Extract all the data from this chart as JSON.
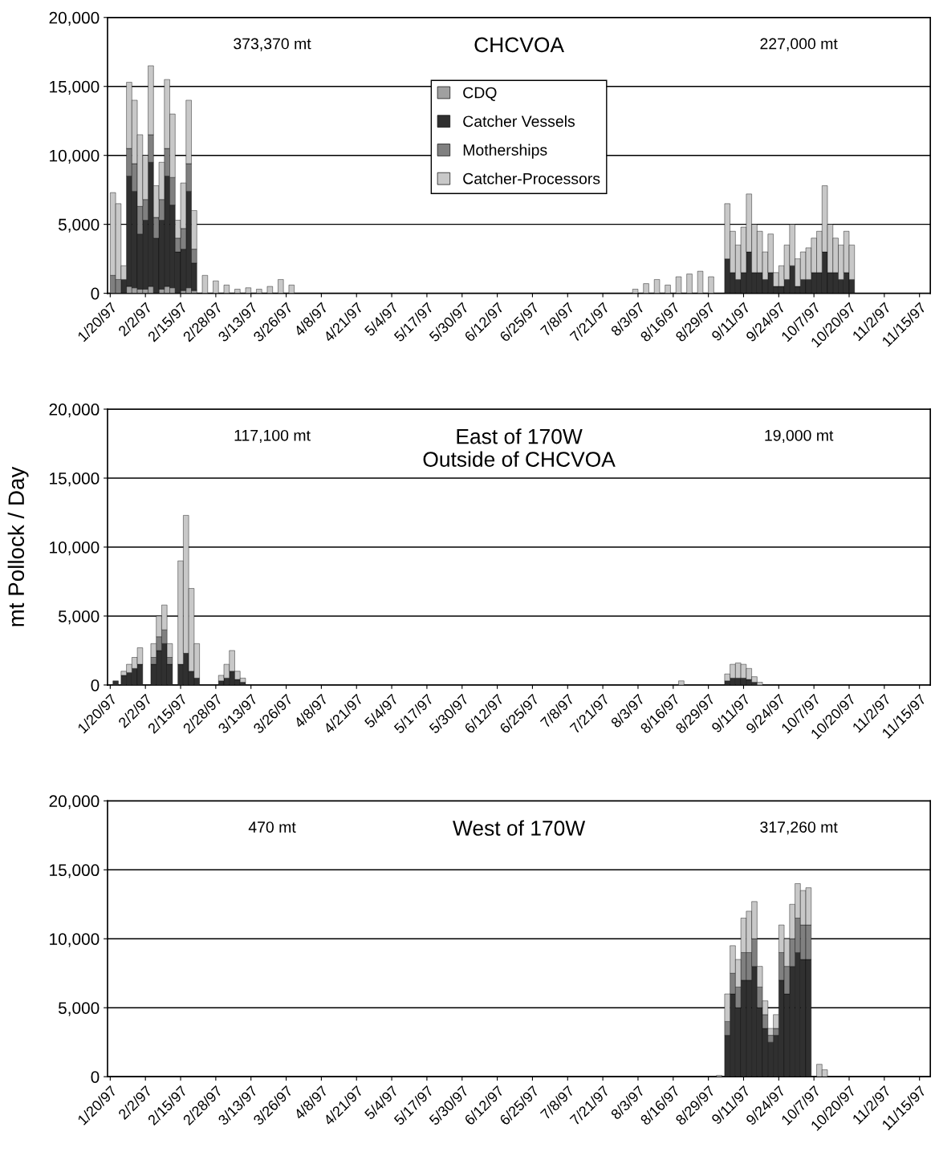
{
  "chart_data": [
    {
      "type": "bar",
      "stacked": true,
      "title": "CHCVOA",
      "annotations": [
        "373,370 mt",
        "227,000 mt"
      ],
      "legend": "top",
      "grid": "y",
      "x": [
        "1997-01-20",
        "1997-01-22",
        "1997-01-24",
        "1997-01-26",
        "1997-01-28",
        "1997-01-30",
        "1997-02-01",
        "1997-02-03",
        "1997-02-05",
        "1997-02-07",
        "1997-02-09",
        "1997-02-11",
        "1997-02-13",
        "1997-02-15",
        "1997-02-17",
        "1997-02-19",
        "1997-02-23",
        "1997-02-27",
        "1997-03-03",
        "1997-03-07",
        "1997-03-11",
        "1997-03-15",
        "1997-03-19",
        "1997-03-23",
        "1997-03-27",
        "1997-08-01",
        "1997-08-05",
        "1997-08-09",
        "1997-08-13",
        "1997-08-17",
        "1997-08-21",
        "1997-08-25",
        "1997-08-29",
        "1997-09-04",
        "1997-09-06",
        "1997-09-08",
        "1997-09-10",
        "1997-09-12",
        "1997-09-14",
        "1997-09-16",
        "1997-09-18",
        "1997-09-20",
        "1997-09-22",
        "1997-09-24",
        "1997-09-26",
        "1997-09-28",
        "1997-09-30",
        "1997-10-02",
        "1997-10-04",
        "1997-10-06",
        "1997-10-08",
        "1997-10-10",
        "1997-10-12",
        "1997-10-14",
        "1997-10-16",
        "1997-10-18",
        "1997-10-20"
      ],
      "series": [
        {
          "name": "CDQ",
          "color": "#a0a0a0",
          "values": [
            0,
            0,
            0,
            500,
            400,
            300,
            300,
            500,
            null,
            300,
            500,
            400,
            null,
            200,
            400,
            200,
            0,
            0,
            0,
            0,
            0,
            0,
            0,
            0,
            0,
            0,
            0,
            0,
            0,
            0,
            0,
            0,
            0,
            0,
            0,
            0,
            0,
            0,
            0,
            0,
            0,
            0,
            0,
            0,
            0,
            0,
            0,
            0,
            0,
            0,
            0,
            0,
            0,
            0,
            0,
            0,
            0
          ]
        },
        {
          "name": "Catcher Vessels",
          "color": "#303030",
          "values": [
            0,
            0,
            1000,
            8000,
            7000,
            4000,
            5000,
            9000,
            4000,
            5000,
            8000,
            6000,
            3000,
            3000,
            7000,
            2000,
            0,
            0,
            0,
            0,
            0,
            0,
            0,
            0,
            0,
            0,
            0,
            0,
            0,
            0,
            0,
            0,
            0,
            2500,
            1500,
            1000,
            1500,
            3000,
            1500,
            1500,
            1000,
            1500,
            500,
            500,
            1000,
            2000,
            500,
            1000,
            1000,
            1500,
            1500,
            3000,
            1500,
            1500,
            1000,
            1500,
            1000
          ]
        },
        {
          "name": "Motherships",
          "color": "#808080",
          "values": [
            1300,
            1000,
            0,
            2000,
            2000,
            2000,
            1500,
            2000,
            1500,
            1500,
            2000,
            2000,
            1000,
            1500,
            2000,
            1000,
            0,
            0,
            0,
            0,
            0,
            0,
            0,
            0,
            0,
            0,
            0,
            0,
            0,
            0,
            0,
            0,
            0,
            0,
            0,
            0,
            0,
            0,
            0,
            0,
            0,
            0,
            0,
            0,
            0,
            0,
            0,
            0,
            0,
            0,
            0,
            0,
            0,
            0,
            0,
            0,
            0
          ]
        },
        {
          "name": "Catcher-Processors",
          "color": "#c8c8c8",
          "values": [
            6000,
            5500,
            1000,
            4800,
            4600,
            5200,
            3200,
            5000,
            2300,
            2700,
            5000,
            4600,
            1300,
            3300,
            4600,
            2800,
            1300,
            900,
            600,
            300,
            400,
            300,
            500,
            1000,
            600,
            300,
            700,
            1000,
            600,
            1200,
            1400,
            1600,
            1200,
            4000,
            3000,
            2500,
            3300,
            4200,
            3500,
            3000,
            2000,
            2800,
            1000,
            1500,
            2500,
            3000,
            2000,
            2000,
            2300,
            2500,
            3000,
            4800,
            3500,
            2500,
            2500,
            3000,
            2500
          ]
        }
      ],
      "xlim": [
        "1997-01-19",
        "1997-11-19"
      ],
      "xticks": [
        {
          "value": "1997-01-20",
          "label": "1/20/97"
        },
        {
          "value": "1997-02-02",
          "label": "2/2/97"
        },
        {
          "value": "1997-02-15",
          "label": "2/15/97"
        },
        {
          "value": "1997-02-28",
          "label": "2/28/97"
        },
        {
          "value": "1997-03-13",
          "label": "3/13/97"
        },
        {
          "value": "1997-03-26",
          "label": "3/26/97"
        },
        {
          "value": "1997-04-08",
          "label": "4/8/97"
        },
        {
          "value": "1997-04-21",
          "label": "4/21/97"
        },
        {
          "value": "1997-05-04",
          "label": "5/4/97"
        },
        {
          "value": "1997-05-17",
          "label": "5/17/97"
        },
        {
          "value": "1997-05-30",
          "label": "5/30/97"
        },
        {
          "value": "1997-06-12",
          "label": "6/12/97"
        },
        {
          "value": "1997-06-25",
          "label": "6/25/97"
        },
        {
          "value": "1997-07-08",
          "label": "7/8/97"
        },
        {
          "value": "1997-07-21",
          "label": "7/21/97"
        },
        {
          "value": "1997-08-03",
          "label": "8/3/97"
        },
        {
          "value": "1997-08-16",
          "label": "8/16/97"
        },
        {
          "value": "1997-08-29",
          "label": "8/29/97"
        },
        {
          "value": "1997-09-11",
          "label": "9/11/97"
        },
        {
          "value": "1997-09-24",
          "label": "9/24/97"
        },
        {
          "value": "1997-10-07",
          "label": "10/7/97"
        },
        {
          "value": "1997-10-20",
          "label": "10/20/97"
        },
        {
          "value": "1997-11-02",
          "label": "11/2/97"
        },
        {
          "value": "1997-11-15",
          "label": "11/15/97"
        }
      ],
      "ylim": [
        0,
        20000
      ],
      "yticks": [
        {
          "value": 0,
          "label": "0"
        },
        {
          "value": 5000,
          "label": "5,000"
        },
        {
          "value": 10000,
          "label": "10,000"
        },
        {
          "value": 15000,
          "label": "15,000"
        },
        {
          "value": 20000,
          "label": "20,000"
        }
      ]
    },
    {
      "type": "bar",
      "stacked": true,
      "title": "East of 170W\nOutside of CHCVOA",
      "ylabel": "mt Pollock / Day",
      "annotations": [
        "117,100 mt",
        "19,000 mt"
      ],
      "grid": "y",
      "x": [
        "1997-01-21",
        "1997-01-24",
        "1997-01-26",
        "1997-01-28",
        "1997-01-30",
        "1997-02-04",
        "1997-02-06",
        "1997-02-08",
        "1997-02-10",
        "1997-02-14",
        "1997-02-16",
        "1997-02-18",
        "1997-02-20",
        "1997-03-01",
        "1997-03-03",
        "1997-03-05",
        "1997-03-07",
        "1997-03-09",
        "1997-08-18",
        "1997-09-04",
        "1997-09-06",
        "1997-09-08",
        "1997-09-10",
        "1997-09-12",
        "1997-09-14",
        "1997-09-16"
      ],
      "series": [
        {
          "color": "#303030",
          "values": [
            300,
            700,
            900,
            1200,
            1500,
            1500,
            2500,
            3000,
            1500,
            1500,
            2300,
            1000,
            500,
            300,
            500,
            1000,
            400,
            200,
            0,
            300,
            500,
            500,
            500,
            400,
            200,
            null
          ]
        },
        {
          "color": "#808080",
          "values": [
            0,
            0,
            0,
            0,
            0,
            500,
            1000,
            1000,
            500,
            0,
            0,
            0,
            0,
            0,
            0,
            0,
            0,
            0,
            0,
            0,
            0,
            0,
            0,
            0,
            0,
            0
          ]
        },
        {
          "color": "#c8c8c8",
          "values": [
            0,
            300,
            600,
            800,
            1200,
            1000,
            1500,
            1800,
            1000,
            7500,
            10000,
            6000,
            2500,
            400,
            1000,
            1500,
            600,
            300,
            300,
            500,
            1000,
            1100,
            1000,
            800,
            400,
            200
          ]
        }
      ],
      "xlim": [
        "1997-01-19",
        "1997-11-19"
      ],
      "xticks": [
        {
          "value": "1997-01-20",
          "label": "1/20/97"
        },
        {
          "value": "1997-02-02",
          "label": "2/2/97"
        },
        {
          "value": "1997-02-15",
          "label": "2/15/97"
        },
        {
          "value": "1997-02-28",
          "label": "2/28/97"
        },
        {
          "value": "1997-03-13",
          "label": "3/13/97"
        },
        {
          "value": "1997-03-26",
          "label": "3/26/97"
        },
        {
          "value": "1997-04-08",
          "label": "4/8/97"
        },
        {
          "value": "1997-04-21",
          "label": "4/21/97"
        },
        {
          "value": "1997-05-04",
          "label": "5/4/97"
        },
        {
          "value": "1997-05-17",
          "label": "5/17/97"
        },
        {
          "value": "1997-05-30",
          "label": "5/30/97"
        },
        {
          "value": "1997-06-12",
          "label": "6/12/97"
        },
        {
          "value": "1997-06-25",
          "label": "6/25/97"
        },
        {
          "value": "1997-07-08",
          "label": "7/8/97"
        },
        {
          "value": "1997-07-21",
          "label": "7/21/97"
        },
        {
          "value": "1997-08-03",
          "label": "8/3/97"
        },
        {
          "value": "1997-08-16",
          "label": "8/16/97"
        },
        {
          "value": "1997-08-29",
          "label": "8/29/97"
        },
        {
          "value": "1997-09-11",
          "label": "9/11/97"
        },
        {
          "value": "1997-09-24",
          "label": "9/24/97"
        },
        {
          "value": "1997-10-07",
          "label": "10/7/97"
        },
        {
          "value": "1997-10-20",
          "label": "10/20/97"
        },
        {
          "value": "1997-11-02",
          "label": "11/2/97"
        },
        {
          "value": "1997-11-15",
          "label": "11/15/97"
        }
      ],
      "ylim": [
        0,
        20000
      ],
      "yticks": [
        {
          "value": 0,
          "label": "0"
        },
        {
          "value": 5000,
          "label": "5,000"
        },
        {
          "value": 10000,
          "label": "10,000"
        },
        {
          "value": 15000,
          "label": "15,000"
        },
        {
          "value": 20000,
          "label": "20,000"
        }
      ]
    },
    {
      "type": "bar",
      "stacked": true,
      "title": "West of 170W",
      "annotations": [
        "470 mt",
        "317,260 mt"
      ],
      "grid": "y",
      "x": [
        "1997-09-01",
        "1997-09-04",
        "1997-09-06",
        "1997-09-08",
        "1997-09-10",
        "1997-09-12",
        "1997-09-14",
        "1997-09-16",
        "1997-09-18",
        "1997-09-20",
        "1997-09-22",
        "1997-09-24",
        "1997-09-26",
        "1997-09-28",
        "1997-09-30",
        "1997-10-02",
        "1997-10-04",
        "1997-10-08",
        "1997-10-10"
      ],
      "series": [
        {
          "color": "#303030",
          "values": [
            null,
            3000,
            6000,
            5000,
            7000,
            7000,
            8000,
            5000,
            3500,
            2500,
            3000,
            7000,
            6000,
            8000,
            9000,
            8500,
            8500,
            0,
            0
          ]
        },
        {
          "color": "#808080",
          "values": [
            0,
            1000,
            1500,
            1500,
            2000,
            2000,
            2000,
            1500,
            1000,
            500,
            500,
            2000,
            2000,
            2000,
            2500,
            2500,
            2500,
            0,
            0
          ]
        },
        {
          "color": "#c8c8c8",
          "values": [
            100,
            2000,
            2000,
            2000,
            2500,
            3000,
            2700,
            1500,
            1000,
            500,
            1000,
            2000,
            2000,
            2500,
            2500,
            2500,
            2700,
            900,
            500
          ]
        }
      ],
      "xlim": [
        "1997-01-19",
        "1997-11-19"
      ],
      "xticks": [
        {
          "value": "1997-01-20",
          "label": "1/20/97"
        },
        {
          "value": "1997-02-02",
          "label": "2/2/97"
        },
        {
          "value": "1997-02-15",
          "label": "2/15/97"
        },
        {
          "value": "1997-02-28",
          "label": "2/28/97"
        },
        {
          "value": "1997-03-13",
          "label": "3/13/97"
        },
        {
          "value": "1997-03-26",
          "label": "3/26/97"
        },
        {
          "value": "1997-04-08",
          "label": "4/8/97"
        },
        {
          "value": "1997-04-21",
          "label": "4/21/97"
        },
        {
          "value": "1997-05-04",
          "label": "5/4/97"
        },
        {
          "value": "1997-05-17",
          "label": "5/17/97"
        },
        {
          "value": "1997-05-30",
          "label": "5/30/97"
        },
        {
          "value": "1997-06-12",
          "label": "6/12/97"
        },
        {
          "value": "1997-06-25",
          "label": "6/25/97"
        },
        {
          "value": "1997-07-08",
          "label": "7/8/97"
        },
        {
          "value": "1997-07-21",
          "label": "7/21/97"
        },
        {
          "value": "1997-08-03",
          "label": "8/3/97"
        },
        {
          "value": "1997-08-16",
          "label": "8/16/97"
        },
        {
          "value": "1997-08-29",
          "label": "8/29/97"
        },
        {
          "value": "1997-09-11",
          "label": "9/11/97"
        },
        {
          "value": "1997-09-24",
          "label": "9/24/97"
        },
        {
          "value": "1997-10-07",
          "label": "10/7/97"
        },
        {
          "value": "1997-10-20",
          "label": "10/20/97"
        },
        {
          "value": "1997-11-02",
          "label": "11/2/97"
        },
        {
          "value": "1997-11-15",
          "label": "11/15/97"
        }
      ],
      "ylim": [
        0,
        20000
      ],
      "yticks": [
        {
          "value": 0,
          "label": "0"
        },
        {
          "value": 5000,
          "label": "5,000"
        },
        {
          "value": 10000,
          "label": "10,000"
        },
        {
          "value": 15000,
          "label": "15,000"
        },
        {
          "value": 20000,
          "label": "20,000"
        }
      ]
    }
  ]
}
